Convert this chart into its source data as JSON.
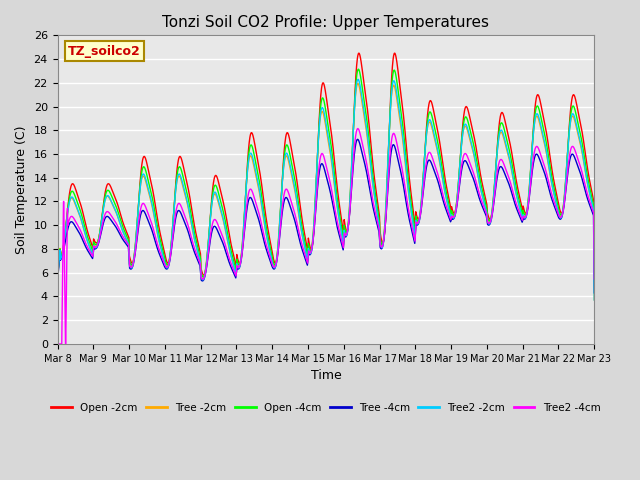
{
  "title": "Tonzi Soil CO2 Profile: Upper Temperatures",
  "xlabel": "Time",
  "ylabel": "Soil Temperature (C)",
  "ylim": [
    0,
    26
  ],
  "yticks": [
    0,
    2,
    4,
    6,
    8,
    10,
    12,
    14,
    16,
    18,
    20,
    22,
    24,
    26
  ],
  "fig_bg": "#d8d8d8",
  "plot_bg": "#e8e8e8",
  "watermark_text": "TZ_soilco2",
  "watermark_bg": "#ffffcc",
  "watermark_border": "#aa8800",
  "series": [
    {
      "label": "Open -2cm",
      "color": "#ff0000"
    },
    {
      "label": "Tree -2cm",
      "color": "#ffaa00"
    },
    {
      "label": "Open -4cm",
      "color": "#00ff00"
    },
    {
      "label": "Tree -4cm",
      "color": "#0000cc"
    },
    {
      "label": "Tree2 -2cm",
      "color": "#00ccff"
    },
    {
      "label": "Tree2 -4cm",
      "color": "#ff00ff"
    }
  ],
  "n_days": 15,
  "start_day": 8,
  "ppd": 144
}
